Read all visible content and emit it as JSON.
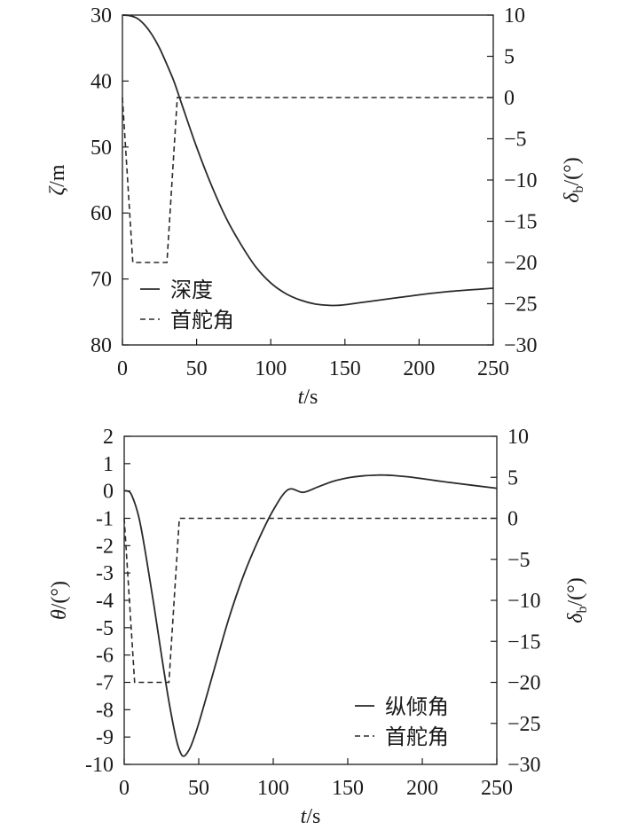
{
  "chart_data": [
    {
      "type": "line",
      "xlabel": {
        "italic": "t",
        "rest": "/s"
      },
      "ylabel": {
        "italic": "ζ",
        "rest": "/m"
      },
      "y2label": {
        "italic": "δ",
        "sub": "b",
        "rest": "/(°)"
      },
      "xlim": [
        0,
        250
      ],
      "ylim": [
        30,
        80
      ],
      "y_inverted": true,
      "y2lim": [
        -30,
        10
      ],
      "xticks": [
        "0",
        "50",
        "100",
        "150",
        "200",
        "250"
      ],
      "yticks": [
        "30",
        "40",
        "50",
        "60",
        "70",
        "80"
      ],
      "y2ticks": [
        "10",
        "5",
        "0",
        "−5",
        "−10",
        "−15",
        "−20",
        "−25",
        "−30"
      ],
      "legend_position": "bottom-left",
      "series": [
        {
          "name": "深度",
          "axis": "left",
          "style": "solid",
          "x": [
            0,
            5,
            10,
            15,
            20,
            25,
            30,
            35,
            40,
            50,
            60,
            70,
            80,
            90,
            100,
            110,
            120,
            130,
            140,
            145,
            150,
            160,
            180,
            200,
            220,
            250
          ],
          "y": [
            30,
            30.1,
            30.5,
            31.5,
            33,
            35,
            37.5,
            40.2,
            43.5,
            50,
            55.8,
            60.8,
            64.8,
            68.2,
            70.6,
            72.2,
            73.2,
            73.8,
            74,
            74,
            73.9,
            73.6,
            73,
            72.4,
            71.9,
            71.4
          ]
        },
        {
          "name": "首舵角",
          "axis": "right",
          "style": "dashed",
          "x": [
            0,
            7,
            30,
            37,
            250
          ],
          "y": [
            0,
            -20,
            -20,
            0,
            0
          ]
        }
      ]
    },
    {
      "type": "line",
      "xlabel": {
        "italic": "t",
        "rest": "/s"
      },
      "ylabel": {
        "italic": "θ",
        "rest": "/(°)"
      },
      "y2label": {
        "italic": "δ",
        "sub": "b",
        "rest": "/(°)"
      },
      "xlim": [
        0,
        250
      ],
      "ylim": [
        -10,
        2
      ],
      "y2lim": [
        -30,
        10
      ],
      "xticks": [
        "0",
        "50",
        "100",
        "150",
        "200",
        "250"
      ],
      "yticks": [
        "2",
        "1",
        "0",
        "-1",
        "-2",
        "-3",
        "-4",
        "-5",
        "-6",
        "-7",
        "-8",
        "-9",
        "-10"
      ],
      "y2ticks": [
        "10",
        "5",
        "0",
        "−5",
        "−10",
        "−15",
        "−20",
        "−25",
        "−30"
      ],
      "legend_position": "bottom-right",
      "series": [
        {
          "name": "纵倾角",
          "axis": "left",
          "style": "solid",
          "x": [
            0,
            2,
            5,
            10,
            15,
            20,
            25,
            30,
            35,
            38,
            40,
            42,
            45,
            50,
            60,
            70,
            80,
            90,
            100,
            110,
            120,
            130,
            140,
            150,
            160,
            170,
            175,
            180,
            190,
            200,
            220,
            250
          ],
          "y": [
            0,
            0,
            -0.15,
            -1,
            -2.5,
            -4.2,
            -6,
            -7.7,
            -9.1,
            -9.6,
            -9.7,
            -9.6,
            -9.3,
            -8.5,
            -6.6,
            -4.7,
            -3.1,
            -1.8,
            -0.7,
            0.05,
            -0.05,
            0.15,
            0.35,
            0.48,
            0.55,
            0.58,
            0.58,
            0.57,
            0.52,
            0.45,
            0.3,
            0.1
          ]
        },
        {
          "name": "首舵角",
          "axis": "right",
          "style": "dashed",
          "x": [
            0,
            7,
            30,
            37,
            250
          ],
          "y": [
            0,
            -20,
            -20,
            0,
            0
          ]
        }
      ]
    }
  ]
}
